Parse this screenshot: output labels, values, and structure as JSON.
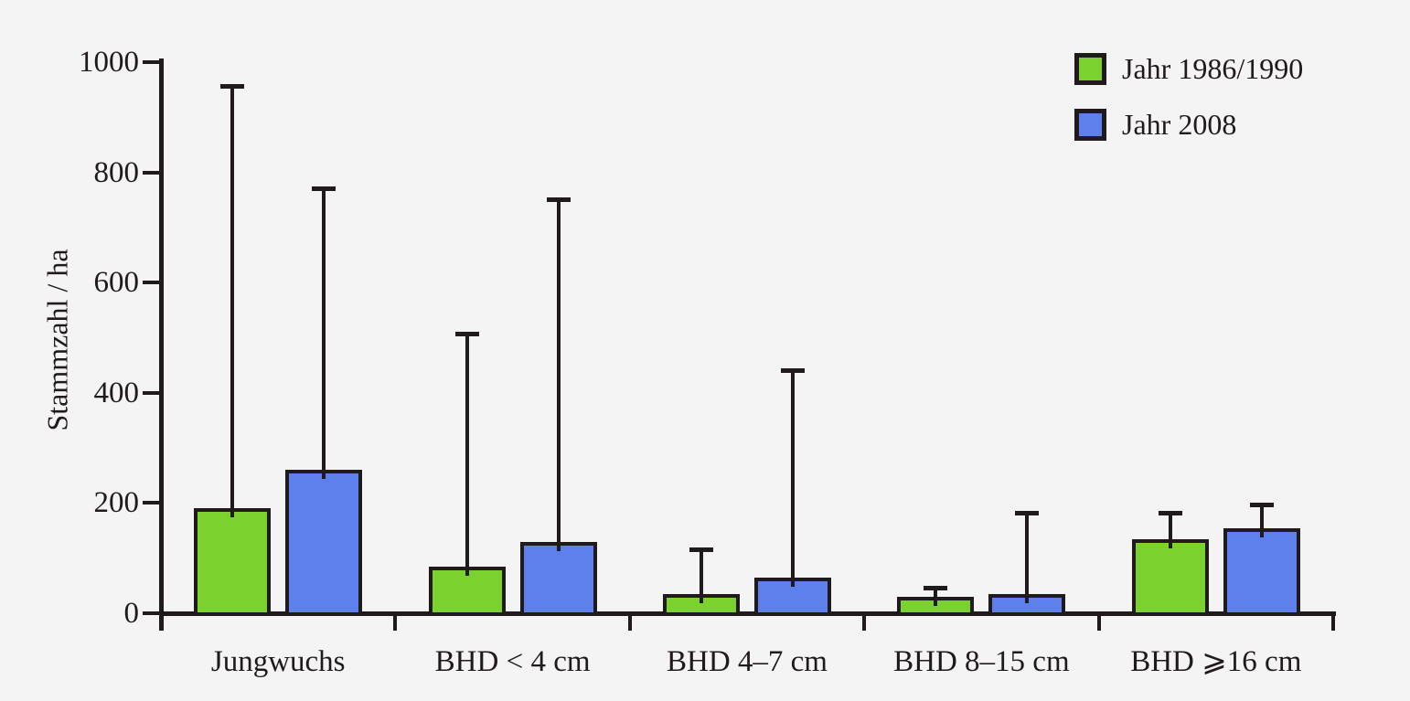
{
  "figure": {
    "background": "#f4f4f4",
    "line_color": "#211a1c"
  },
  "chart_data": {
    "type": "bar",
    "title": "",
    "xlabel": "",
    "ylabel": "Stammzahl / ha",
    "ylim": [
      0,
      1000
    ],
    "yticks": [
      0,
      200,
      400,
      600,
      800,
      1000
    ],
    "grid": false,
    "legend_position": "top-right",
    "error_bars": "upper-whisker-with-cap",
    "categories": [
      "Jungwuchs",
      "BHD < 4 cm",
      "BHD 4–7 cm",
      "BHD 8–15 cm",
      "BHD ⩾16 cm"
    ],
    "series": [
      {
        "name": "Jahr 1986/1990",
        "color": "#7bd22f",
        "values": [
          190,
          85,
          35,
          30,
          135
        ],
        "error_top": [
          960,
          510,
          120,
          50,
          185
        ]
      },
      {
        "name": "Jahr 2008",
        "color": "#5e80ec",
        "values": [
          260,
          130,
          65,
          35,
          155
        ],
        "error_top": [
          775,
          755,
          445,
          185,
          200
        ]
      }
    ]
  }
}
